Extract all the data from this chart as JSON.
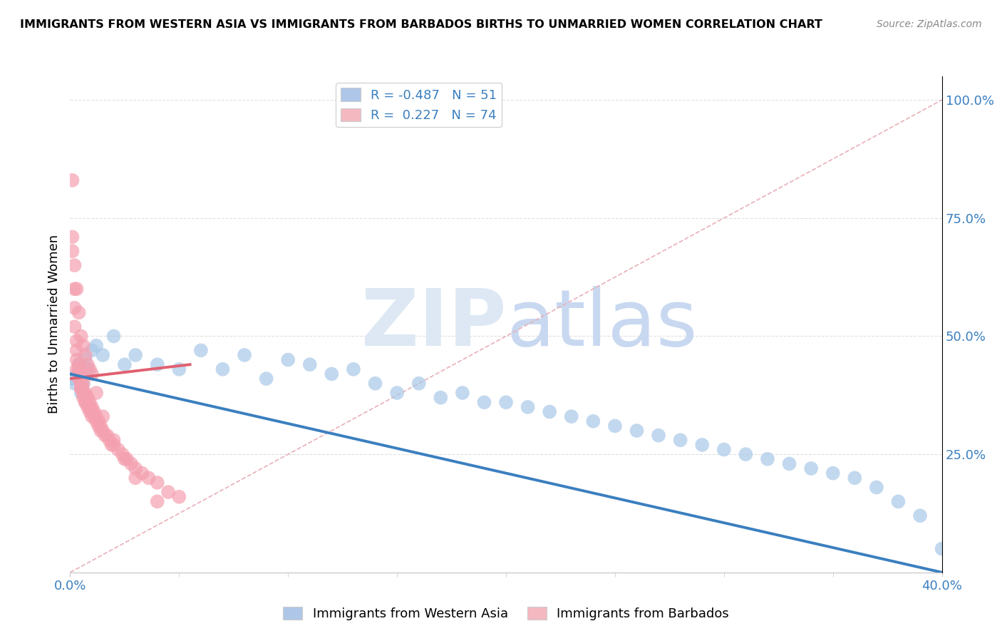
{
  "title": "IMMIGRANTS FROM WESTERN ASIA VS IMMIGRANTS FROM BARBADOS BIRTHS TO UNMARRIED WOMEN CORRELATION CHART",
  "source": "Source: ZipAtlas.com",
  "ylabel": "Births to Unmarried Women",
  "right_yticks": [
    "100.0%",
    "75.0%",
    "50.0%",
    "25.0%"
  ],
  "right_ytick_vals": [
    1.0,
    0.75,
    0.5,
    0.25
  ],
  "legend1_r": "R = -0.487",
  "legend1_n": "N = 51",
  "legend2_r": "R =  0.227",
  "legend2_n": "N = 74",
  "legend1_color": "#aec6e8",
  "legend2_color": "#f4b8c1",
  "blue_scatter_color": "#a8c8e8",
  "pink_scatter_color": "#f4a0b0",
  "trend_line_color": "#3a7fbf",
  "ref_line_color": "#e8b0b8",
  "watermark_color": "#dde8f4",
  "xlim": [
    0.0,
    0.4
  ],
  "ylim": [
    0.0,
    1.05
  ],
  "background_color": "#ffffff",
  "grid_color": "#e0e0e0",
  "blue_x": [
    0.001,
    0.002,
    0.003,
    0.004,
    0.005,
    0.006,
    0.007,
    0.008,
    0.01,
    0.012,
    0.015,
    0.02,
    0.025,
    0.03,
    0.04,
    0.05,
    0.06,
    0.07,
    0.08,
    0.09,
    0.1,
    0.11,
    0.12,
    0.13,
    0.14,
    0.15,
    0.16,
    0.17,
    0.18,
    0.19,
    0.2,
    0.21,
    0.22,
    0.23,
    0.24,
    0.25,
    0.26,
    0.27,
    0.28,
    0.29,
    0.3,
    0.31,
    0.32,
    0.33,
    0.34,
    0.35,
    0.36,
    0.37,
    0.38,
    0.39,
    0.4
  ],
  "blue_y": [
    0.41,
    0.4,
    0.42,
    0.44,
    0.38,
    0.4,
    0.45,
    0.43,
    0.47,
    0.48,
    0.46,
    0.5,
    0.44,
    0.46,
    0.44,
    0.43,
    0.47,
    0.43,
    0.46,
    0.41,
    0.45,
    0.44,
    0.42,
    0.43,
    0.4,
    0.38,
    0.4,
    0.37,
    0.38,
    0.36,
    0.36,
    0.35,
    0.34,
    0.33,
    0.32,
    0.31,
    0.3,
    0.29,
    0.28,
    0.27,
    0.26,
    0.25,
    0.24,
    0.23,
    0.22,
    0.21,
    0.2,
    0.18,
    0.15,
    0.12,
    0.05
  ],
  "pink_x": [
    0.001,
    0.001,
    0.001,
    0.002,
    0.002,
    0.002,
    0.002,
    0.003,
    0.003,
    0.003,
    0.003,
    0.004,
    0.004,
    0.004,
    0.004,
    0.005,
    0.005,
    0.005,
    0.005,
    0.006,
    0.006,
    0.006,
    0.006,
    0.007,
    0.007,
    0.007,
    0.007,
    0.008,
    0.008,
    0.008,
    0.009,
    0.009,
    0.009,
    0.01,
    0.01,
    0.01,
    0.011,
    0.011,
    0.012,
    0.012,
    0.013,
    0.013,
    0.014,
    0.014,
    0.015,
    0.016,
    0.017,
    0.018,
    0.019,
    0.02,
    0.022,
    0.024,
    0.026,
    0.028,
    0.03,
    0.033,
    0.036,
    0.04,
    0.045,
    0.05,
    0.003,
    0.004,
    0.005,
    0.006,
    0.007,
    0.008,
    0.009,
    0.01,
    0.012,
    0.015,
    0.02,
    0.025,
    0.03,
    0.04
  ],
  "pink_y": [
    0.83,
    0.71,
    0.68,
    0.65,
    0.6,
    0.56,
    0.52,
    0.49,
    0.47,
    0.45,
    0.43,
    0.44,
    0.42,
    0.41,
    0.43,
    0.4,
    0.39,
    0.41,
    0.39,
    0.38,
    0.38,
    0.4,
    0.37,
    0.37,
    0.36,
    0.38,
    0.36,
    0.36,
    0.37,
    0.35,
    0.35,
    0.36,
    0.34,
    0.34,
    0.35,
    0.33,
    0.33,
    0.34,
    0.32,
    0.33,
    0.32,
    0.31,
    0.31,
    0.3,
    0.3,
    0.29,
    0.29,
    0.28,
    0.27,
    0.27,
    0.26,
    0.25,
    0.24,
    0.23,
    0.22,
    0.21,
    0.2,
    0.19,
    0.17,
    0.16,
    0.6,
    0.55,
    0.5,
    0.48,
    0.46,
    0.44,
    0.43,
    0.42,
    0.38,
    0.33,
    0.28,
    0.24,
    0.2,
    0.15
  ],
  "pink_trend_x": [
    0.0,
    0.055
  ],
  "pink_trend_y": [
    0.41,
    0.44
  ],
  "blue_trend_x": [
    0.0,
    0.4
  ],
  "blue_trend_y": [
    0.42,
    0.0
  ]
}
